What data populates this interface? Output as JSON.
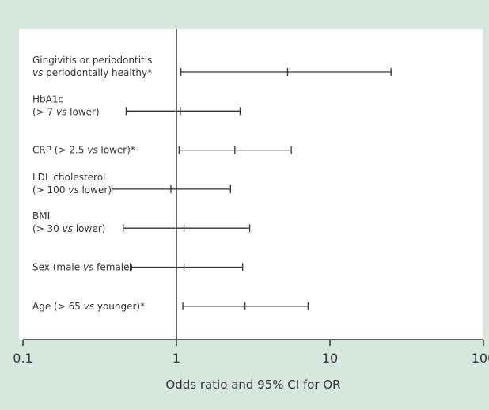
{
  "chart_data": {
    "type": "forest",
    "xlabel": "Odds ratio and 95% CI for OR",
    "xscale": "log",
    "xlim": [
      0.1,
      100
    ],
    "ticks": [
      {
        "value": 0.1,
        "label": "0.1"
      },
      {
        "value": 1,
        "label": "1"
      },
      {
        "value": 10,
        "label": "10"
      },
      {
        "value": 100,
        "label": "100"
      }
    ],
    "reference_line": 1,
    "rows": [
      {
        "label_lines": [
          [
            {
              "t": "Gingivitis or periodontitis"
            }
          ],
          [
            {
              "t": "vs",
              "i": true
            },
            {
              "t": " periodontally healthy*"
            }
          ]
        ],
        "lower": 1.07,
        "or": 5.3,
        "upper": 25.0
      },
      {
        "label_lines": [
          [
            {
              "t": "HbA1c"
            }
          ],
          [
            {
              "t": "(> 7 "
            },
            {
              "t": "vs",
              "i": true
            },
            {
              "t": " lower)"
            }
          ]
        ],
        "lower": 0.47,
        "or": 1.06,
        "upper": 2.6
      },
      {
        "label_lines": [
          [
            {
              "t": "CRP (> 2.5 "
            },
            {
              "t": "vs",
              "i": true
            },
            {
              "t": " lower)*"
            }
          ]
        ],
        "lower": 1.04,
        "or": 2.4,
        "upper": 5.6
      },
      {
        "label_lines": [
          [
            {
              "t": "LDL cholesterol"
            }
          ],
          [
            {
              "t": "(> 100 "
            },
            {
              "t": "vs",
              "i": true
            },
            {
              "t": " lower)"
            }
          ]
        ],
        "lower": 0.38,
        "or": 0.92,
        "upper": 2.25
      },
      {
        "label_lines": [
          [
            {
              "t": "BMI"
            }
          ],
          [
            {
              "t": "(> 30 "
            },
            {
              "t": "vs",
              "i": true
            },
            {
              "t": " lower)"
            }
          ]
        ],
        "lower": 0.45,
        "or": 1.12,
        "upper": 3.0
      },
      {
        "label_lines": [
          [
            {
              "t": "Sex (male "
            },
            {
              "t": "vs",
              "i": true
            },
            {
              "t": " female)"
            }
          ]
        ],
        "lower": 0.5,
        "or": 1.12,
        "upper": 2.7
      },
      {
        "label_lines": [
          [
            {
              "t": "Age (> 65 "
            },
            {
              "t": "vs",
              "i": true
            },
            {
              "t": " younger)*"
            }
          ]
        ],
        "lower": 1.1,
        "or": 2.8,
        "upper": 7.2
      }
    ],
    "grid": false,
    "colors": {
      "background": "#d6e8de",
      "plot": "#ffffff",
      "ink": "#333333"
    }
  }
}
